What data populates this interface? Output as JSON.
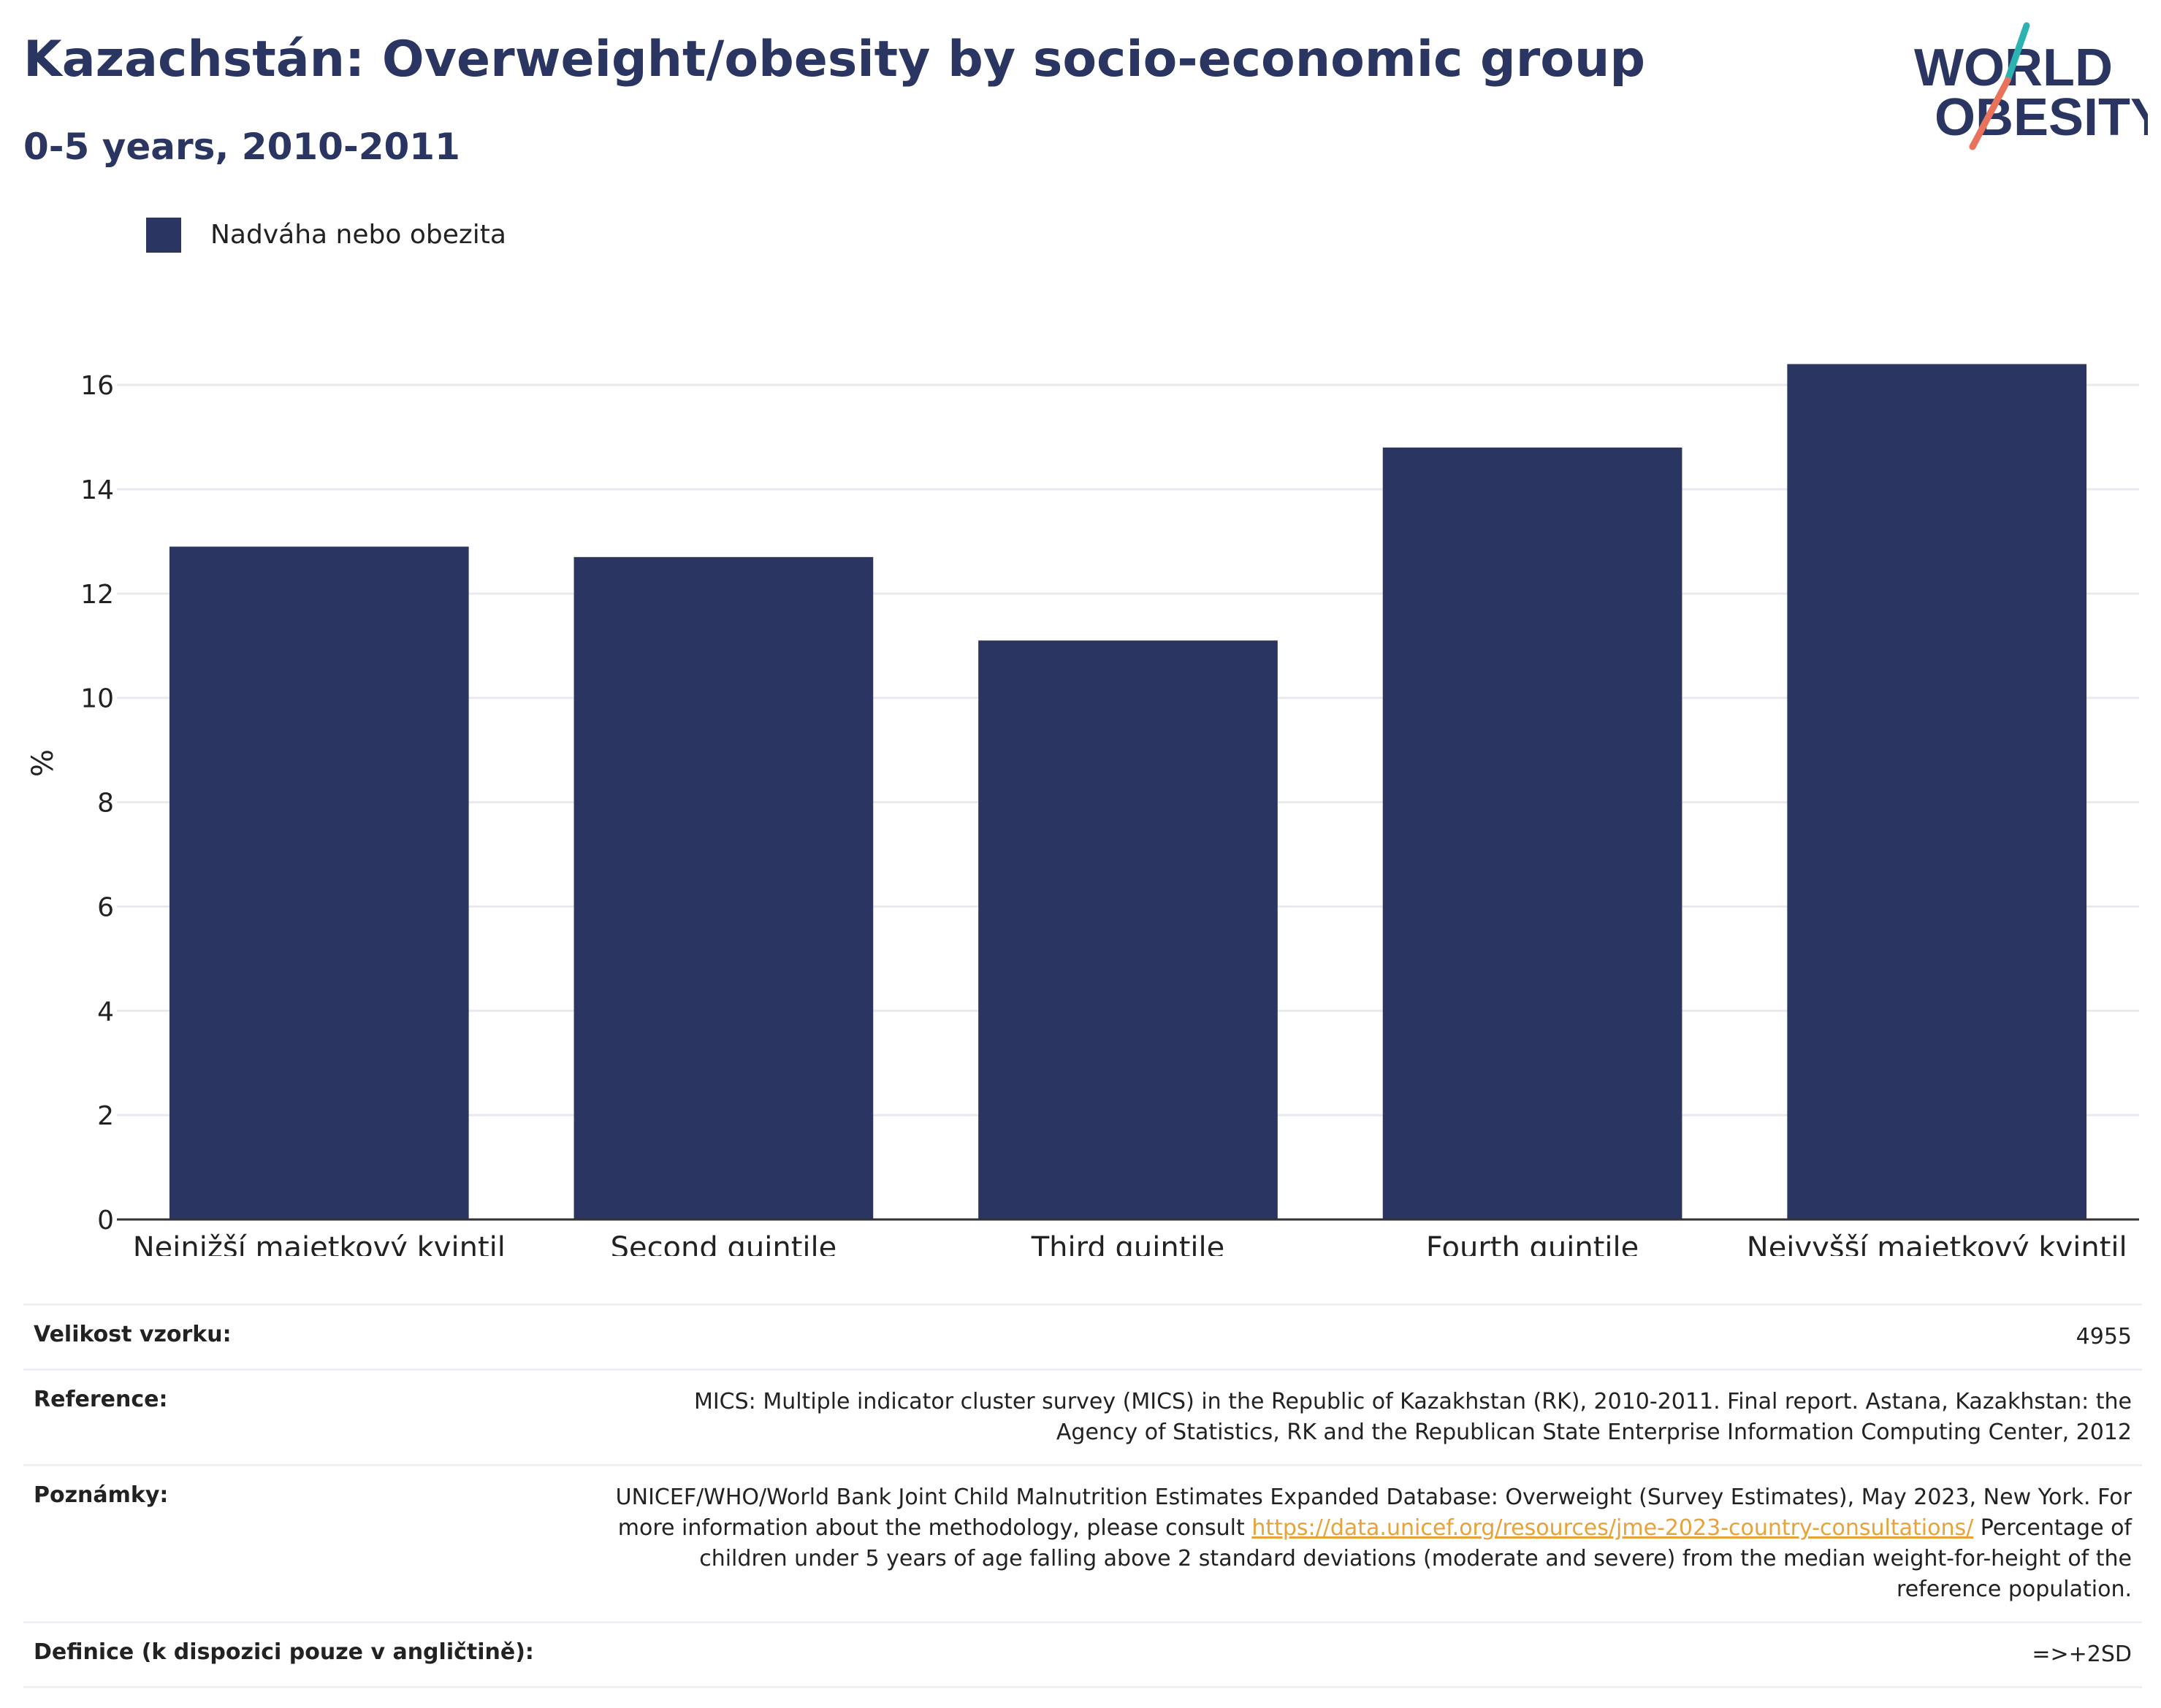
{
  "header": {
    "title": "Kazachstán: Overweight/obesity by socio-economic group",
    "subtitle": "0-5 years, 2010-2011"
  },
  "logo": {
    "line1": "WORLD",
    "line2": "OBESITY",
    "accent_teal": "#2bb3b1",
    "accent_coral": "#e8735a"
  },
  "legend": {
    "label": "Nadváha nebo obezita",
    "color": "#2a3561"
  },
  "chart_data": {
    "type": "bar",
    "categories": [
      "Nejnižší majetkový kvintil",
      "Second quintile",
      "Third quintile",
      "Fourth quintile",
      "Nejvyšší majetkový kvintil"
    ],
    "series": [
      {
        "name": "Nadváha nebo obezita",
        "values": [
          12.9,
          12.7,
          11.1,
          14.8,
          16.4
        ],
        "color": "#2a3561"
      }
    ],
    "ylabel": "%",
    "xlabel": "",
    "ylim": [
      0,
      17.5
    ],
    "yticks": [
      0,
      2,
      4,
      6,
      8,
      10,
      12,
      14,
      16
    ],
    "grid": true,
    "legend_position": "top-left"
  },
  "meta": {
    "sample_size_label": "Velikost vzorku:",
    "sample_size_value": "4955",
    "reference_label": "Reference:",
    "reference_value": "MICS: Multiple indicator cluster survey (MICS) in the Republic of Kazakhstan (RK), 2010-2011. Final report. Astana, Kazakhstan: the Agency of Statistics, RK and the Republican State Enterprise Information Computing Center, 2012",
    "notes_label": "Poznámky:",
    "notes_text_before": "UNICEF/WHO/World Bank Joint Child Malnutrition Estimates Expanded Database: Overweight (Survey Estimates), May 2023, New York. For more information about the methodology, please consult ",
    "notes_link": "https://data.unicef.org/resources/jme-2023-country-consultations/",
    "notes_text_after": " Percentage of children under 5 years of age falling above 2 standard deviations (moderate and severe) from the median weight-for-height of the reference population.",
    "definition_label": "Definice (k dispozici pouze v angličtině):",
    "definition_value": "=>+2SD"
  }
}
